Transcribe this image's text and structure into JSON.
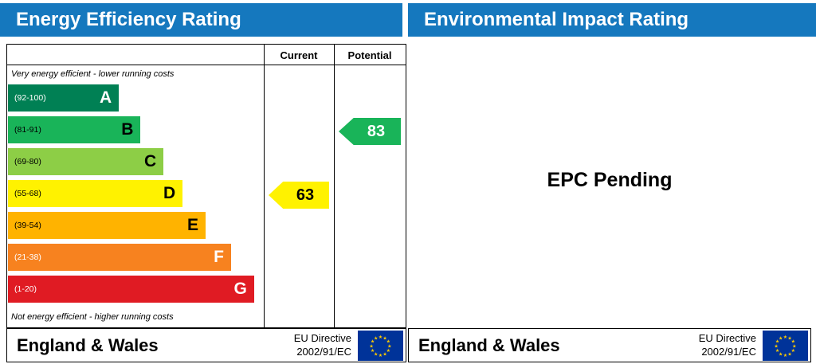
{
  "header": {
    "energy_title": "Energy Efficiency Rating",
    "environmental_title": "Environmental Impact Rating",
    "bar_color": "#1578be"
  },
  "chart_data": {
    "type": "bar",
    "title": "Energy Efficiency Rating",
    "columns": {
      "current": "Current",
      "potential": "Potential"
    },
    "top_note": "Very energy efficient - lower running costs",
    "bottom_note": "Not energy efficient - higher running costs",
    "bands": [
      {
        "letter": "A",
        "range": "(92-100)",
        "color": "#008054",
        "text_color": "#ffffff",
        "width_pct": 43.5
      },
      {
        "letter": "B",
        "range": "(81-91)",
        "color": "#19b459",
        "text_color": "#000000",
        "width_pct": 52
      },
      {
        "letter": "C",
        "range": "(69-80)",
        "color": "#8dce46",
        "text_color": "#000000",
        "width_pct": 61
      },
      {
        "letter": "D",
        "range": "(55-68)",
        "color": "#fff200",
        "text_color": "#000000",
        "width_pct": 68.5
      },
      {
        "letter": "E",
        "range": "(39-54)",
        "color": "#ffb300",
        "text_color": "#000000",
        "width_pct": 77.5
      },
      {
        "letter": "F",
        "range": "(21-38)",
        "color": "#f7821f",
        "text_color": "#ffffff",
        "width_pct": 87.5
      },
      {
        "letter": "G",
        "range": "(1-20)",
        "color": "#e01b23",
        "text_color": "#ffffff",
        "width_pct": 96.5
      }
    ],
    "current": {
      "value": "63",
      "band": "D",
      "arrow_color": "#fff200",
      "text_color": "#000000"
    },
    "potential": {
      "value": "83",
      "band": "B",
      "arrow_color": "#19b459",
      "text_color": "#ffffff"
    }
  },
  "right_panel": {
    "message": "EPC Pending"
  },
  "footer": {
    "region": "England & Wales",
    "directive_line1": "EU Directive",
    "directive_line2": "2002/91/EC",
    "flag_bg": "#003399",
    "star_color": "#ffcc00"
  }
}
